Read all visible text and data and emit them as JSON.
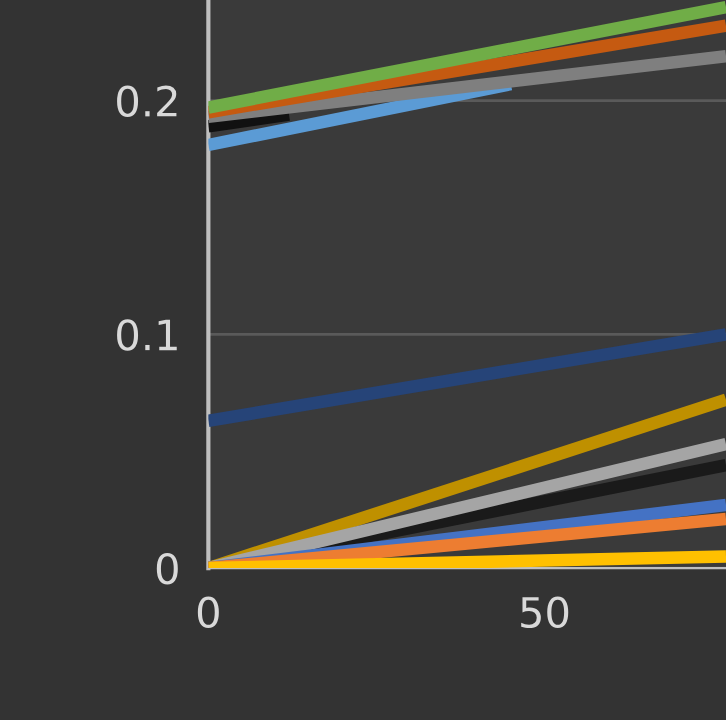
{
  "chart_data": {
    "type": "line",
    "x": [
      0,
      77
    ],
    "xlim": [
      0,
      77
    ],
    "ylim": [
      0,
      0.243
    ],
    "xticks": [
      0,
      50
    ],
    "yticks": [
      0,
      0.1,
      0.2
    ],
    "grid": "y",
    "marker": "none",
    "line_style": "solid",
    "series": [
      {
        "color": "#5b9bd5",
        "x": [
          0,
          45
        ],
        "values": [
          0.181,
          0.207
        ]
      },
      {
        "color": "#111111",
        "x": [
          0,
          12
        ],
        "values": [
          0.189,
          0.194
        ]
      },
      {
        "color": "#7f7f7f",
        "values": [
          0.193,
          0.219
        ]
      },
      {
        "color": "#c55a11",
        "values": [
          0.195,
          0.232
        ]
      },
      {
        "color": "#70ad47",
        "values": [
          0.197,
          0.24
        ]
      },
      {
        "color": "#264478",
        "values": [
          0.063,
          0.1
        ]
      },
      {
        "color": "#1a1a1a",
        "values": [
          0,
          0.044
        ]
      },
      {
        "color": "#bf9000",
        "values": [
          0,
          0.072
        ]
      },
      {
        "color": "#a5a5a5",
        "values": [
          0,
          0.053
        ]
      },
      {
        "color": "#4472c4",
        "values": [
          0,
          0.027
        ]
      },
      {
        "color": "#ed7d31",
        "values": [
          0,
          0.021
        ]
      },
      {
        "color": "#ffc000",
        "values": [
          0,
          0.005
        ]
      }
    ]
  }
}
